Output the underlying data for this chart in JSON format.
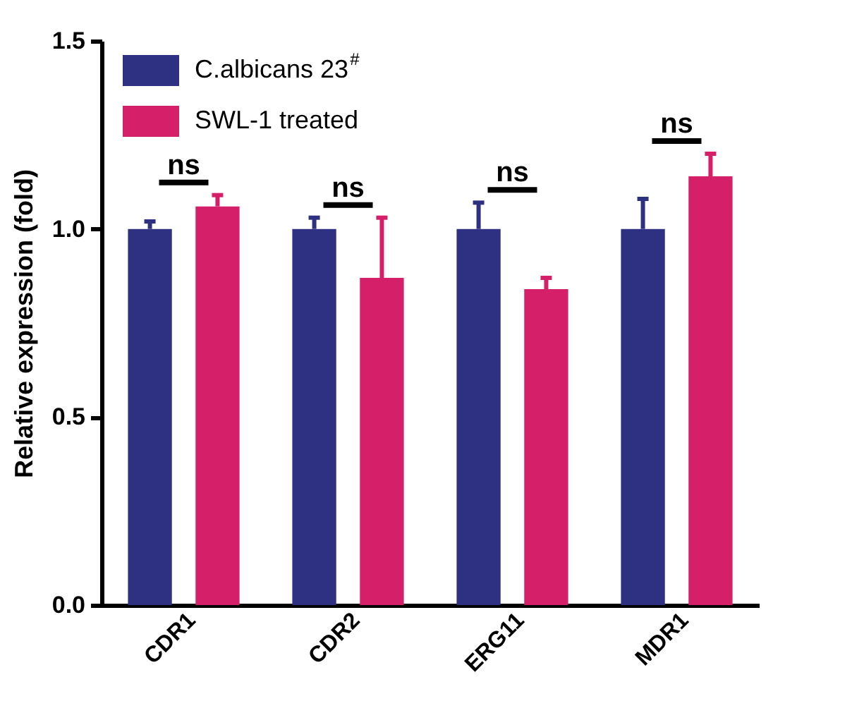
{
  "chart_data": {
    "type": "bar",
    "ylabel": "Relative expression (fold)",
    "categories": [
      "CDR1",
      "CDR2",
      "ERG11",
      "MDR1"
    ],
    "series": [
      {
        "name": "C.albicans 23$^{#}$",
        "color": "#2e3182",
        "values": [
          1.0,
          1.0,
          1.0,
          1.0
        ],
        "errors": [
          [
            1.0,
            1.02
          ],
          [
            1.0,
            1.03
          ],
          [
            1.0,
            1.07
          ],
          [
            1.0,
            1.08
          ]
        ]
      },
      {
        "name": "SWL-1 treated",
        "color": "#d61f69",
        "values": [
          1.06,
          0.87,
          0.84,
          1.14
        ],
        "errors": [
          [
            1.06,
            1.09
          ],
          [
            0.87,
            1.03
          ],
          [
            0.84,
            0.87
          ],
          [
            1.14,
            1.2
          ]
        ]
      }
    ],
    "ylim": [
      0,
      1.5
    ],
    "yticks": [
      {
        "value": 0,
        "label": "0.0"
      },
      {
        "value": 0.5,
        "label": "0.5"
      },
      {
        "value": 1,
        "label": "1.0"
      },
      {
        "value": 1.5,
        "label": "1.5"
      }
    ],
    "grid": false,
    "legend": "top left",
    "annotations": [
      "ns",
      "ns",
      "ns",
      "ns"
    ]
  }
}
